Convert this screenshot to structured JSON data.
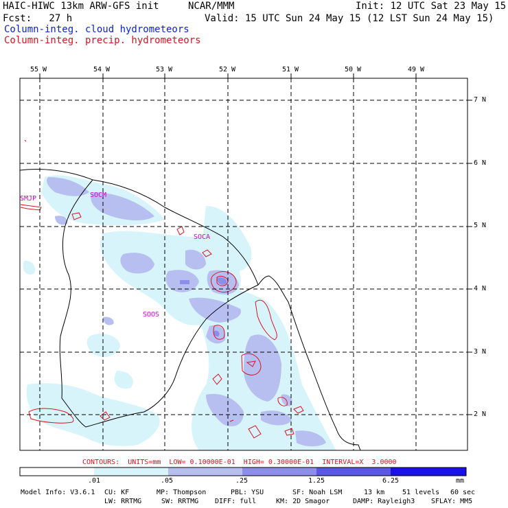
{
  "header": {
    "model_title": "HAIC-HIWC 13km ARW-GFS init",
    "org": "NCAR/MMM",
    "init": "Init: 12 UTC Sat 23 May 15",
    "fcst": "Fcst:   27 h",
    "valid": "Valid: 15 UTC Sun 24 May 15 (12 LST Sun 24 May 15)",
    "field_cloud": "Column-integ. cloud hydrometeors",
    "field_precip": "Column-integ. precip. hydrometeors"
  },
  "map": {
    "lon_labels": [
      "55 W",
      "54 W",
      "53 W",
      "52 W",
      "51 W",
      "50 W",
      "49 W"
    ],
    "lat_labels": [
      "7 N",
      "6 N",
      "5 N",
      "4 N",
      "3 N",
      "2 N"
    ],
    "stations": [
      "SMJP",
      "SOCM",
      "SOCA",
      "SOOS"
    ]
  },
  "contour_info": "CONTOURS:  UNITS=mm  LOW= 0.10000E-01  HIGH= 0.30000E-01  INTERVAL=X  3.0000",
  "colorbar": {
    "ticks": [
      ".01",
      ".05",
      ".25",
      "1.25",
      "6.25"
    ],
    "unit": "mm",
    "colors": [
      "#ffffff",
      "#d8f4fb",
      "#b7bff0",
      "#8c8ee8",
      "#5a58e2",
      "#1a10e8"
    ]
  },
  "footer": {
    "line1": [
      "Model Info: V3.6.1",
      "CU: KF",
      "MP: Thompson",
      "PBL: YSU",
      "SF: Noah LSM",
      "13 km",
      "51 levels",
      "60 sec"
    ],
    "line2": [
      "LW: RRTMG",
      "SW: RRTMG",
      "DIFF: full",
      "KM: 2D Smagor",
      "DAMP: Rayleigh3",
      "SFLAY: MM5"
    ]
  }
}
